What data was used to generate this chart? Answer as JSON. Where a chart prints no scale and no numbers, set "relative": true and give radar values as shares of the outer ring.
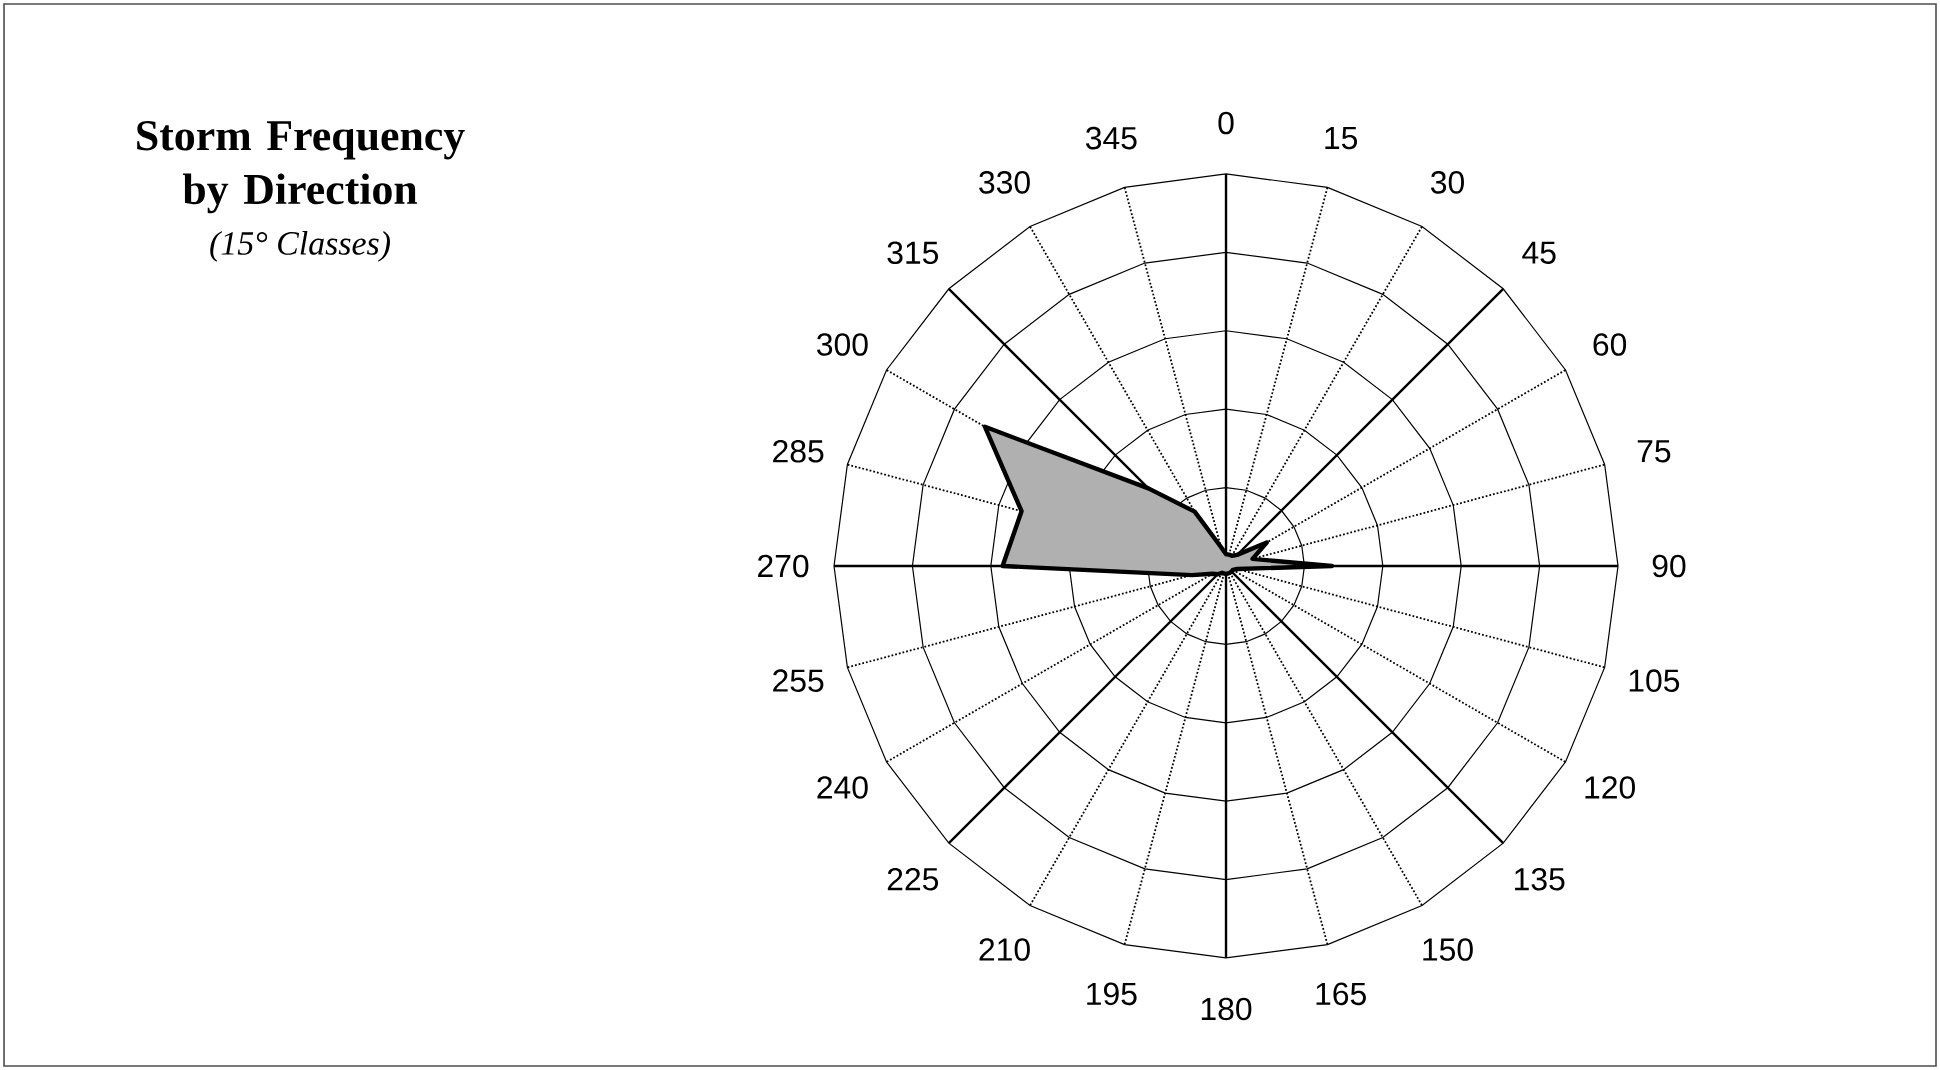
{
  "chart_data": {
    "type": "radar",
    "title": "Storm Frequency by Direction",
    "subtitle": "(15° Classes)",
    "categories": [
      "0",
      "15",
      "30",
      "45",
      "60",
      "75",
      "90",
      "105",
      "120",
      "135",
      "150",
      "165",
      "180",
      "195",
      "210",
      "225",
      "240",
      "255",
      "270",
      "285",
      "300",
      "315",
      "330",
      "345"
    ],
    "relative": true,
    "grid": true,
    "series": [
      {
        "color": "#b0b0b0",
        "values": [
          0.03,
          0.03,
          0.03,
          0.04,
          0.12,
          0.07,
          0.27,
          0.03,
          0.02,
          0.02,
          0.02,
          0.02,
          0.02,
          0.02,
          0.02,
          0.03,
          0.04,
          0.09,
          0.57,
          0.54,
          0.71,
          0.28,
          0.16,
          0.05
        ]
      }
    ]
  }
}
